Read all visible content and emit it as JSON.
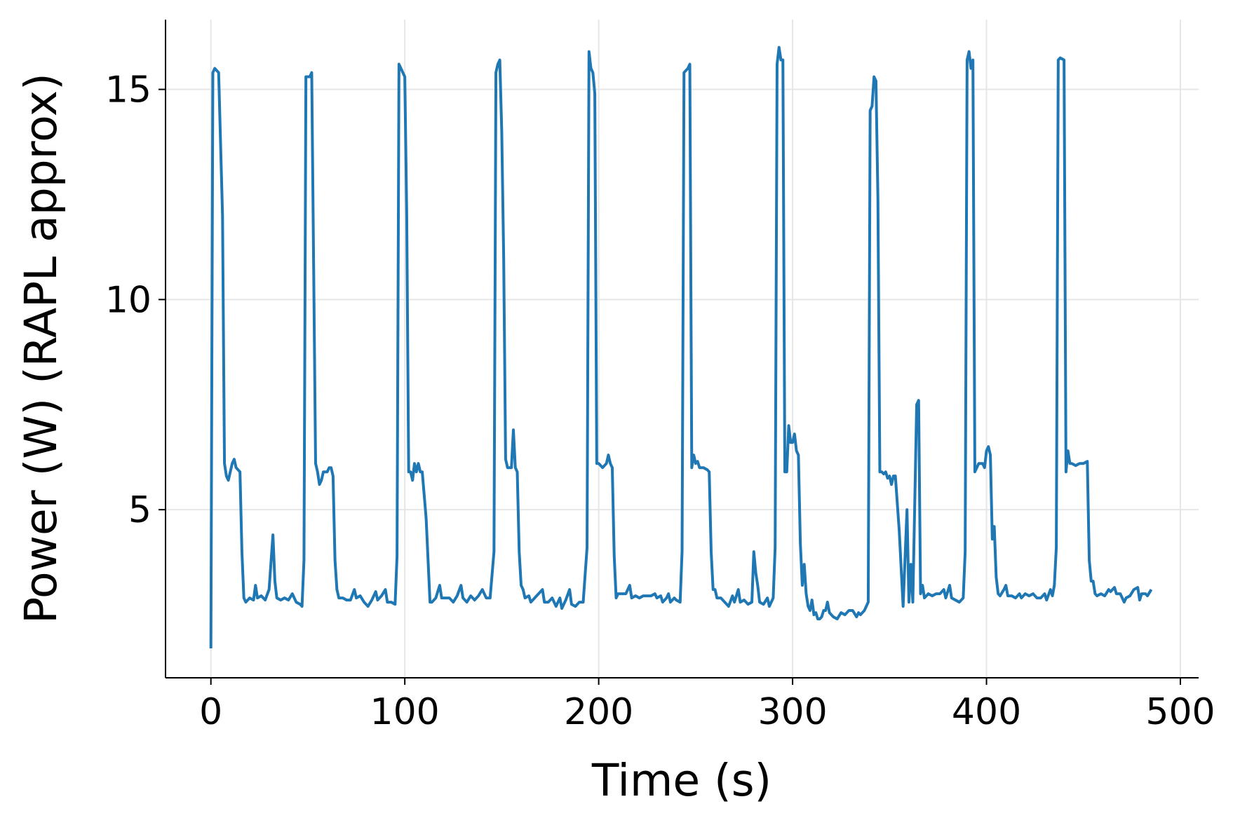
{
  "chart_data": {
    "type": "line",
    "xlabel": "Time (s)",
    "ylabel": "Power (W) (RAPL approx)",
    "xlim": [
      -23.4,
      509.4
    ],
    "ylim": [
      1.0,
      16.66
    ],
    "xticks": [
      0,
      100,
      200,
      300,
      400,
      500
    ],
    "yticks": [
      5,
      10,
      15
    ],
    "grid": true,
    "x": [
      0,
      1,
      2,
      4,
      6,
      7,
      8,
      9,
      11,
      12,
      13,
      15,
      16,
      17,
      18,
      20,
      22,
      23,
      24,
      26,
      28,
      30,
      32,
      33,
      34,
      36,
      38,
      40,
      42,
      44,
      46,
      47,
      48,
      49,
      51,
      52,
      54,
      55,
      56,
      57,
      58,
      60,
      61,
      62,
      63,
      64,
      65,
      66,
      68,
      70,
      72,
      74,
      75,
      77,
      79,
      81,
      83,
      85,
      86,
      88,
      90,
      91,
      93,
      95,
      96,
      97,
      98,
      99,
      100,
      101,
      102,
      103,
      104,
      105,
      106,
      107,
      108,
      109,
      111,
      112,
      113,
      114,
      116,
      118,
      119,
      121,
      123,
      125,
      127,
      129,
      130,
      132,
      134,
      136,
      138,
      140,
      142,
      144,
      146,
      147,
      148,
      149,
      150,
      151,
      152,
      153,
      155,
      156,
      157,
      158,
      159,
      160,
      161,
      162,
      164,
      165,
      167,
      169,
      171,
      172,
      174,
      176,
      178,
      180,
      181,
      183,
      185,
      186,
      188,
      190,
      192,
      194,
      195,
      196,
      197,
      198,
      199,
      200,
      202,
      204,
      205,
      206,
      207,
      208,
      209,
      210,
      212,
      214,
      216,
      217,
      219,
      221,
      223,
      225,
      227,
      229,
      230,
      232,
      233,
      235,
      236,
      237,
      239,
      240,
      242,
      243,
      244,
      246,
      247,
      248,
      249,
      250,
      251,
      252,
      254,
      256,
      257,
      258,
      259,
      260,
      261,
      263,
      265,
      267,
      269,
      270,
      272,
      273,
      275,
      277,
      279,
      280,
      281,
      282,
      283,
      285,
      287,
      288,
      290,
      291,
      292,
      293,
      294,
      295,
      296,
      297,
      298,
      299,
      300,
      301,
      302,
      303,
      304,
      305,
      306,
      307,
      308,
      309,
      310,
      311,
      312,
      313,
      314,
      315,
      316,
      317,
      318,
      319,
      321,
      323,
      325,
      327,
      329,
      331,
      333,
      334,
      335,
      337,
      339,
      340,
      341,
      342,
      343,
      344,
      345,
      346,
      347,
      348,
      349,
      350,
      351,
      352,
      353,
      355,
      357,
      359,
      360,
      361,
      362,
      364,
      365,
      366,
      367,
      368,
      370,
      372,
      374,
      376,
      378,
      379,
      381,
      382,
      384,
      386,
      388,
      389,
      390,
      391,
      392,
      393,
      394,
      395,
      396,
      398,
      399,
      400,
      401,
      402,
      403,
      404,
      405,
      406,
      407,
      409,
      410,
      411,
      413,
      415,
      417,
      418,
      420,
      422,
      424,
      426,
      428,
      430,
      431,
      433,
      434,
      435,
      436,
      437,
      438,
      440,
      441,
      442,
      443,
      444,
      446,
      448,
      450,
      452,
      453,
      454,
      455,
      456,
      457,
      459,
      461,
      463,
      464,
      466,
      467,
      469,
      471,
      472,
      474,
      476,
      478,
      479,
      480,
      482,
      483,
      485
    ],
    "series": [
      {
        "color": "#1f77b4",
        "values": [
          1.7,
          15.4,
          15.5,
          15.4,
          12,
          6.1,
          5.8,
          5.7,
          6.1,
          6.2,
          6.0,
          5.9,
          4,
          2.9,
          2.8,
          2.9,
          2.85,
          3.2,
          2.9,
          2.95,
          2.85,
          3.1,
          4.4,
          3.3,
          2.9,
          2.85,
          2.9,
          2.85,
          3.0,
          2.8,
          2.75,
          2.7,
          3.8,
          15.3,
          15.3,
          15.4,
          6.1,
          5.9,
          5.6,
          5.7,
          5.9,
          5.9,
          6.0,
          6.0,
          5.8,
          3.8,
          3.1,
          2.9,
          2.9,
          2.85,
          2.85,
          3.1,
          2.9,
          2.95,
          2.8,
          2.7,
          2.85,
          3.05,
          2.85,
          2.95,
          3.1,
          2.8,
          2.8,
          2.75,
          3.9,
          15.6,
          15.5,
          15.4,
          15.3,
          12,
          5.9,
          5.9,
          5.7,
          6.1,
          5.9,
          6.1,
          5.9,
          5.9,
          4.8,
          3.8,
          2.8,
          2.8,
          2.9,
          3.2,
          2.9,
          2.9,
          2.9,
          2.8,
          2.95,
          3.2,
          2.9,
          2.8,
          2.95,
          2.85,
          2.95,
          3.1,
          2.9,
          2.9,
          4.0,
          15.4,
          15.6,
          15.7,
          14,
          11,
          6.2,
          6.0,
          6.0,
          6.9,
          6.0,
          5.9,
          4,
          3.2,
          3.1,
          2.9,
          2.95,
          2.8,
          2.9,
          3.0,
          3.1,
          2.8,
          2.8,
          2.9,
          2.7,
          2.9,
          2.65,
          2.85,
          3.1,
          2.75,
          2.7,
          2.8,
          2.8,
          4.1,
          15.9,
          15.5,
          15.4,
          14.9,
          6.1,
          6.1,
          6.0,
          6.1,
          6.3,
          6.1,
          6.0,
          3.9,
          2.9,
          3.0,
          3.0,
          3.0,
          3.2,
          2.9,
          2.95,
          2.9,
          2.95,
          2.95,
          2.95,
          3.0,
          2.9,
          2.95,
          2.8,
          2.9,
          3.0,
          2.8,
          2.9,
          2.85,
          2.8,
          4.0,
          15.4,
          15.5,
          15.6,
          6.0,
          6.3,
          6.1,
          6.15,
          6.0,
          6.0,
          5.95,
          5.9,
          4.0,
          3.1,
          3.1,
          2.9,
          2.9,
          2.8,
          2.7,
          2.95,
          2.8,
          3.1,
          2.8,
          2.85,
          2.75,
          2.8,
          4.0,
          3.5,
          3.2,
          2.8,
          2.75,
          2.9,
          2.7,
          2.9,
          4.1,
          15.6,
          16.0,
          15.7,
          15.7,
          5.9,
          5.9,
          7.0,
          6.6,
          6.6,
          6.8,
          6.4,
          6.3,
          4.2,
          3.2,
          3.7,
          3.0,
          2.7,
          2.6,
          2.85,
          2.5,
          2.55,
          2.4,
          2.4,
          2.45,
          2.6,
          2.6,
          2.8,
          2.55,
          2.45,
          2.4,
          2.55,
          2.5,
          2.6,
          2.6,
          2.45,
          2.55,
          2.5,
          2.6,
          2.8,
          14.5,
          14.6,
          15.3,
          15.2,
          12.4,
          5.9,
          5.9,
          5.85,
          5.9,
          5.75,
          5.8,
          5.6,
          5.8,
          5.8,
          4.5,
          2.7,
          5.0,
          2.8,
          3.7,
          2.8,
          7.5,
          7.6,
          3.0,
          3.2,
          2.9,
          3.0,
          2.95,
          3.0,
          3.0,
          3.1,
          2.9,
          3.2,
          2.9,
          2.85,
          2.8,
          2.9,
          4.0,
          15.7,
          15.9,
          15.5,
          15.7,
          5.9,
          6.0,
          6.1,
          6.1,
          6.0,
          6.4,
          6.5,
          6.3,
          4.3,
          4.6,
          3.4,
          3.0,
          2.95,
          3.1,
          3.2,
          2.95,
          2.95,
          2.9,
          3.0,
          2.9,
          3.0,
          2.95,
          3.0,
          2.9,
          2.9,
          3.0,
          2.85,
          3.1,
          2.95,
          3.2,
          4.1,
          15.7,
          15.75,
          15.7,
          5.9,
          6.4,
          6.1,
          6.1,
          6.05,
          6.1,
          6.1,
          6.15,
          3.8,
          3.3,
          3.3,
          3.0,
          2.95,
          3.0,
          2.95,
          3.1,
          3.05,
          3.15,
          3.0,
          3.0,
          2.8,
          2.9,
          2.95,
          3.1,
          3.15,
          2.85,
          3.0,
          3.0,
          2.95,
          3.1
        ]
      }
    ]
  }
}
